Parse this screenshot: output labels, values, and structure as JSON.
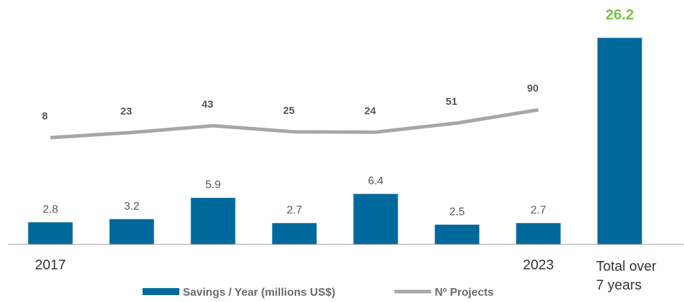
{
  "chart_data": {
    "type": "bar",
    "categories": [
      "2017",
      null,
      null,
      null,
      null,
      null,
      "2023",
      "Total over 7 years"
    ],
    "series": [
      {
        "name": "Savings / Year (millions US$)",
        "type": "bar",
        "color": "#00699b",
        "values": [
          2.8,
          3.2,
          5.9,
          2.7,
          6.4,
          2.5,
          2.7,
          26.2
        ]
      },
      {
        "name": "Nº Projects",
        "type": "line",
        "axis": "y2",
        "color": "#a6a6a6",
        "values": [
          8,
          23,
          43,
          25,
          24,
          51,
          90,
          null
        ]
      }
    ],
    "ylim": [
      0,
      31
    ],
    "y2lim": [
      -307,
      414
    ],
    "total_label_color": "#7ac143",
    "legend": "bottom"
  }
}
